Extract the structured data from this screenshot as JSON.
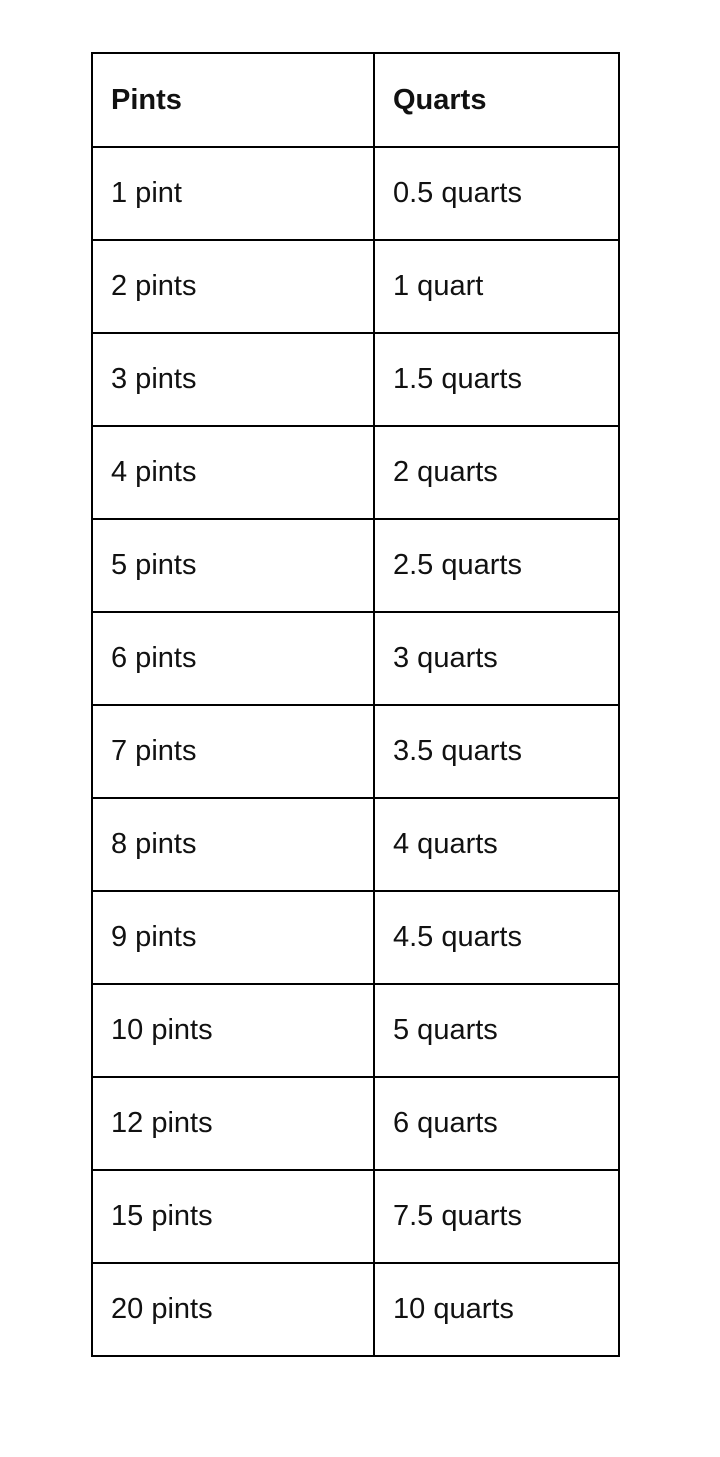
{
  "table": {
    "headers": [
      "Pints",
      "Quarts"
    ],
    "rows": [
      [
        "1 pint",
        "0.5 quarts"
      ],
      [
        "2 pints",
        "1 quart"
      ],
      [
        "3 pints",
        "1.5 quarts"
      ],
      [
        "4 pints",
        "2 quarts"
      ],
      [
        "5 pints",
        "2.5 quarts"
      ],
      [
        "6 pints",
        "3 quarts"
      ],
      [
        "7 pints",
        "3.5 quarts"
      ],
      [
        "8 pints",
        "4 quarts"
      ],
      [
        "9 pints",
        "4.5 quarts"
      ],
      [
        "10 pints",
        "5 quarts"
      ],
      [
        "12 pints",
        "6 quarts"
      ],
      [
        "15 pints",
        "7.5 quarts"
      ],
      [
        "20 pints",
        "10 quarts"
      ]
    ]
  }
}
